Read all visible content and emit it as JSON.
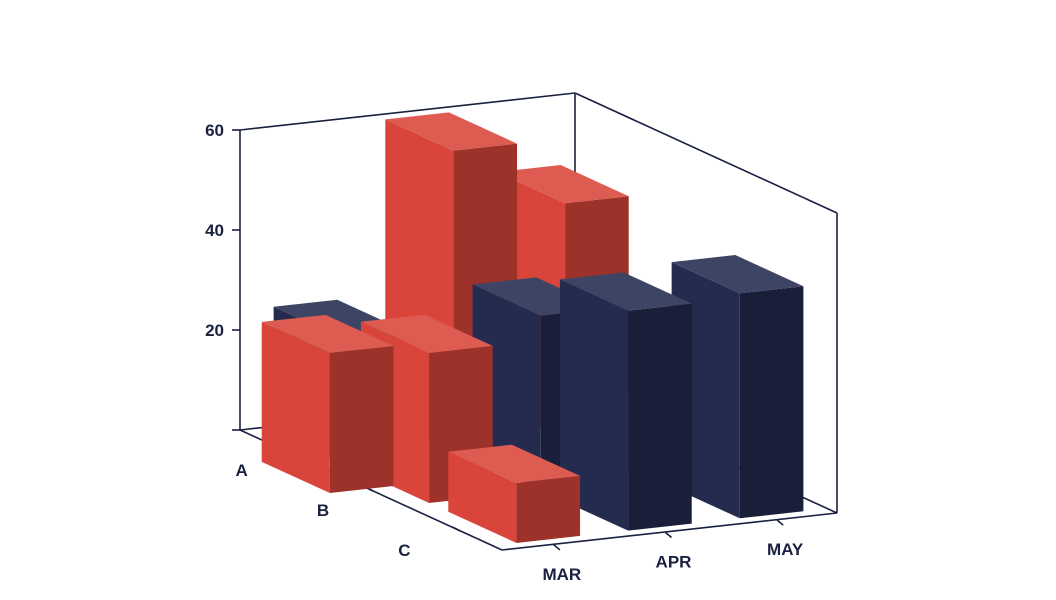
{
  "chart_data": {
    "type": "bar",
    "projection": "3d",
    "x_categories": [
      "MAR",
      "APR",
      "MAY"
    ],
    "depth_categories": [
      "A",
      "B",
      "C"
    ],
    "y_ticks": [
      "20",
      "40",
      "60"
    ],
    "ylim": [
      0,
      60
    ],
    "grid": false,
    "colors": {
      "front": "#d9453a",
      "navy": "#242b4f"
    },
    "bars": [
      {
        "x": "MAR",
        "depth": "A",
        "value": 25,
        "color": "navy"
      },
      {
        "x": "MAR",
        "depth": "B",
        "value": 30,
        "color": "front"
      },
      {
        "x": "MAR",
        "depth": "C",
        "value": 12,
        "color": "front"
      },
      {
        "x": "APR",
        "depth": "A",
        "value": 60,
        "color": "front"
      },
      {
        "x": "APR",
        "depth": "B",
        "value": 35,
        "color": "navy"
      },
      {
        "x": "APR",
        "depth": "C",
        "value": 44,
        "color": "navy"
      },
      {
        "x": "MAY",
        "depth": "A",
        "value": 47,
        "color": "front"
      },
      {
        "x": "MAY",
        "depth": "B",
        "value": 10,
        "color": "front"
      },
      {
        "x": "MAY",
        "depth": "C",
        "value": 45,
        "color": "navy"
      }
    ],
    "back_row": [
      {
        "x": "MAR",
        "depth": "A",
        "value": 28,
        "color": "front",
        "col": "pre"
      }
    ]
  }
}
